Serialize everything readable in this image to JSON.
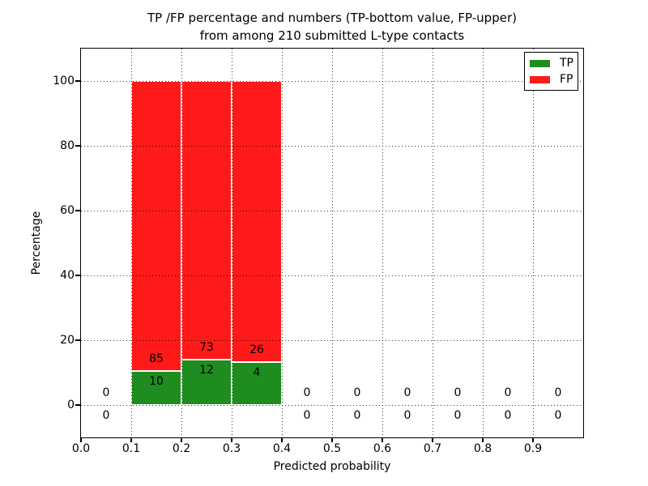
{
  "chart_data": {
    "type": "bar",
    "stacked": true,
    "title_line1": "TP /FP percentage and numbers (TP-bottom value, FP-upper)",
    "title_line2": "from among 210 submitted L-type contacts",
    "xlabel": "Predicted probability",
    "ylabel": "Percentage",
    "xlim": [
      0,
      1.0
    ],
    "ylim": [
      -10,
      110
    ],
    "xticks": [
      "0.0",
      "0.1",
      "0.2",
      "0.3",
      "0.4",
      "0.5",
      "0.6",
      "0.7",
      "0.8",
      "0.9"
    ],
    "xtick_values": [
      0,
      0.1,
      0.2,
      0.3,
      0.4,
      0.5,
      0.6,
      0.7,
      0.8,
      0.9
    ],
    "yticks": [
      0,
      20,
      40,
      60,
      80,
      100
    ],
    "grid": "dotted",
    "grid_over_bars": true,
    "legend_position": "upper right",
    "series": [
      {
        "name": "TP",
        "color": "#1e8c1e"
      },
      {
        "name": "FP",
        "color": "#ff1a1a"
      }
    ],
    "total_submitted": 210,
    "bins": [
      {
        "range": [
          0.0,
          0.1
        ],
        "tp": 0,
        "fp": 0,
        "tp_pct": null,
        "fp_pct": null
      },
      {
        "range": [
          0.1,
          0.2
        ],
        "tp": 10,
        "fp": 85,
        "tp_pct": 10.5,
        "fp_pct": 89.5
      },
      {
        "range": [
          0.2,
          0.3
        ],
        "tp": 12,
        "fp": 73,
        "tp_pct": 14.1,
        "fp_pct": 85.9
      },
      {
        "range": [
          0.3,
          0.4
        ],
        "tp": 4,
        "fp": 26,
        "tp_pct": 13.3,
        "fp_pct": 86.7
      },
      {
        "range": [
          0.4,
          0.5
        ],
        "tp": 0,
        "fp": 0,
        "tp_pct": null,
        "fp_pct": null
      },
      {
        "range": [
          0.5,
          0.6
        ],
        "tp": 0,
        "fp": 0,
        "tp_pct": null,
        "fp_pct": null
      },
      {
        "range": [
          0.6,
          0.7
        ],
        "tp": 0,
        "fp": 0,
        "tp_pct": null,
        "fp_pct": null
      },
      {
        "range": [
          0.7,
          0.8
        ],
        "tp": 0,
        "fp": 0,
        "tp_pct": null,
        "fp_pct": null
      },
      {
        "range": [
          0.8,
          0.9
        ],
        "tp": 0,
        "fp": 0,
        "tp_pct": null,
        "fp_pct": null
      },
      {
        "range": [
          0.9,
          1.0
        ],
        "tp": 0,
        "fp": 0,
        "tp_pct": null,
        "fp_pct": null
      }
    ]
  },
  "colors": {
    "tp": "#1e8c1e",
    "fp": "#ff1a1a",
    "text": "#000000",
    "background": "#ffffff"
  }
}
